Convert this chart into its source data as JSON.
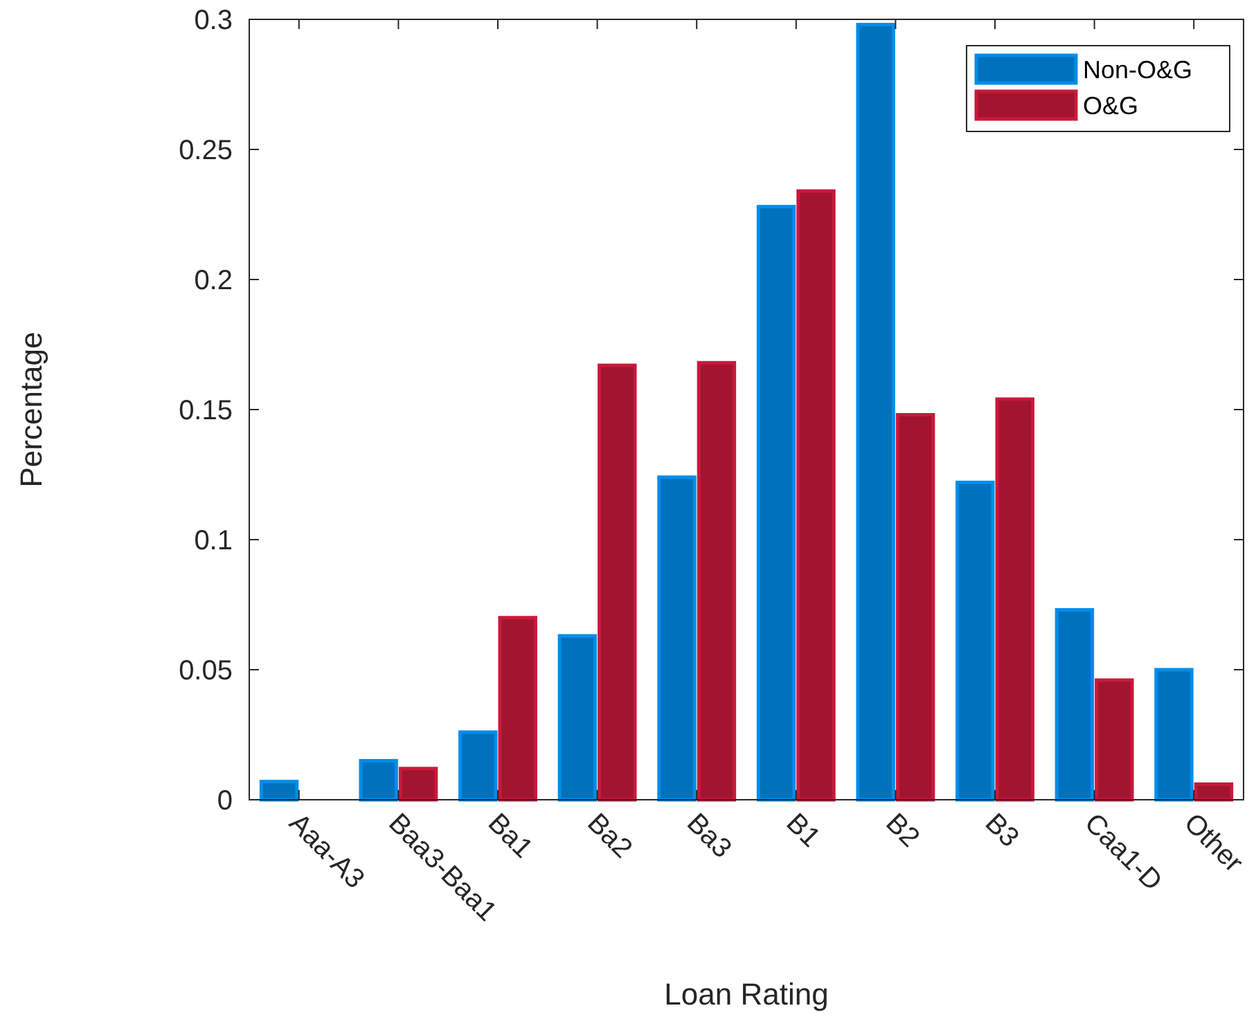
{
  "chart_data": {
    "type": "bar",
    "xlabel": "Loan Rating",
    "ylabel": "Percentage",
    "categories": [
      "Aaa-A3",
      "Baa3-Baa1",
      "Ba1",
      "Ba2",
      "Ba3",
      "B1",
      "B2",
      "B3",
      "Caa1-D",
      "Other"
    ],
    "series": [
      {
        "name": "Non-O&G",
        "color": "#0072bd",
        "values": [
          0.007,
          0.015,
          0.026,
          0.063,
          0.124,
          0.228,
          0.298,
          0.122,
          0.073,
          0.05
        ]
      },
      {
        "name": "O&G",
        "color": "#a2142f",
        "values": [
          0,
          0.012,
          0.07,
          0.167,
          0.168,
          0.234,
          0.148,
          0.154,
          0.046,
          0.006
        ]
      }
    ],
    "ylim": [
      0,
      0.3
    ],
    "yticks": [
      0,
      0.05,
      0.1,
      0.15,
      0.2,
      0.25,
      0.3
    ],
    "legend": "top right",
    "grid": false
  }
}
